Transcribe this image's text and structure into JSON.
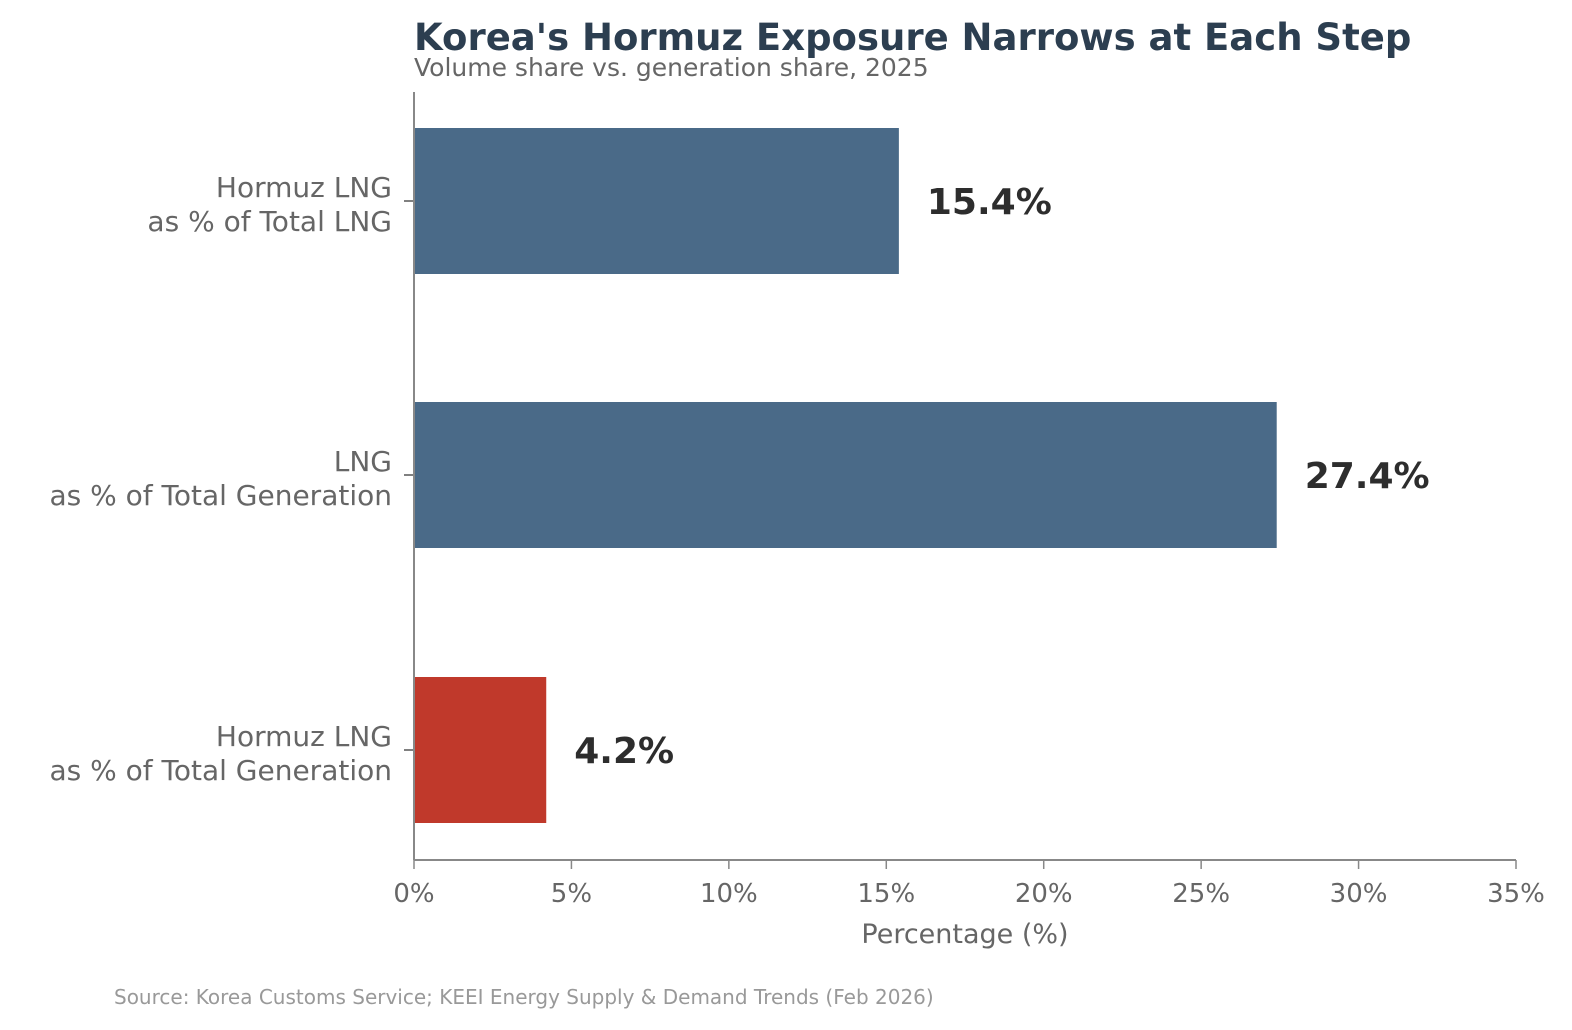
{
  "chart_data": {
    "type": "bar",
    "orientation": "horizontal",
    "title": "Korea's Hormuz Exposure Narrows at Each Step",
    "subtitle": "Volume share vs. generation share, 2025",
    "categories": [
      [
        "Hormuz LNG",
        "as % of Total LNG"
      ],
      [
        "LNG",
        "as % of Total Generation"
      ],
      [
        "Hormuz LNG",
        "as % of Total Generation"
      ]
    ],
    "values": [
      15.4,
      27.4,
      4.2
    ],
    "value_labels": [
      "15.4%",
      "27.4%",
      "4.2%"
    ],
    "bar_colors": [
      "#4a6a88",
      "#4a6a88",
      "#c0392b"
    ],
    "xlabel": "Percentage (%)",
    "ylabel": "",
    "xlim": [
      0,
      35
    ],
    "xticks": [
      0,
      5,
      10,
      15,
      20,
      25,
      30,
      35
    ],
    "xtick_labels": [
      "0%",
      "5%",
      "10%",
      "15%",
      "20%",
      "25%",
      "30%",
      "35%"
    ],
    "grid": false,
    "legend": "none"
  },
  "source": "Source: Korea Customs Service; KEEI Energy Supply & Demand Trends (Feb 2026)"
}
